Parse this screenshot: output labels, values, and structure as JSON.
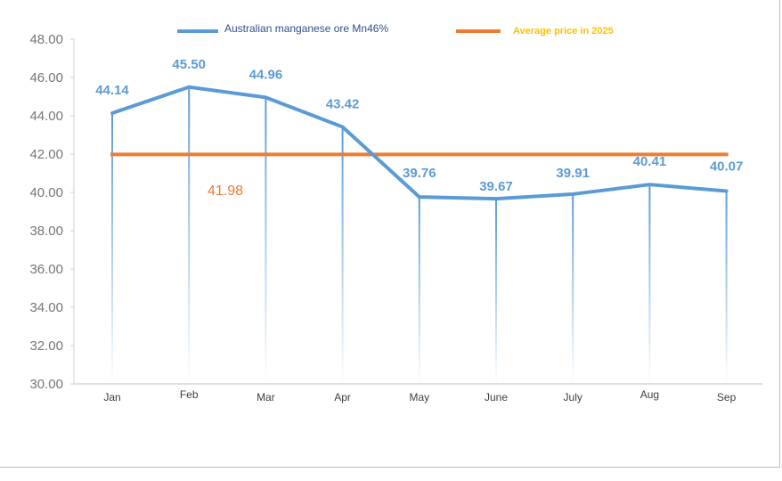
{
  "chart_data": {
    "type": "line",
    "categories": [
      "Jan",
      "Feb",
      "Mar",
      "Apr",
      "May",
      "June",
      "July",
      "Aug",
      "Sep"
    ],
    "series": [
      {
        "name": "Australian manganese ore Mn46%",
        "values": [
          44.14,
          45.5,
          44.96,
          43.42,
          39.76,
          39.67,
          39.91,
          40.41,
          40.07
        ],
        "labels": [
          "44.14",
          "45.50",
          "44.96",
          "43.42",
          "39.76",
          "39.67",
          "39.91",
          "40.41",
          "40.07"
        ],
        "color": "#5b9bd5"
      },
      {
        "name": "Average price in 2025",
        "value": 41.98,
        "label": "41.98",
        "color": "#ed7d31"
      }
    ],
    "yticks": [
      "30.00",
      "32.00",
      "34.00",
      "36.00",
      "38.00",
      "40.00",
      "42.00",
      "44.00",
      "46.00",
      "48.00"
    ],
    "ylim": [
      30,
      48
    ],
    "grid": false,
    "drop_lines": true,
    "legend_position": "top",
    "legend_colors": {
      "label1": "#2f4f8f",
      "label2": "#ffc000"
    }
  }
}
